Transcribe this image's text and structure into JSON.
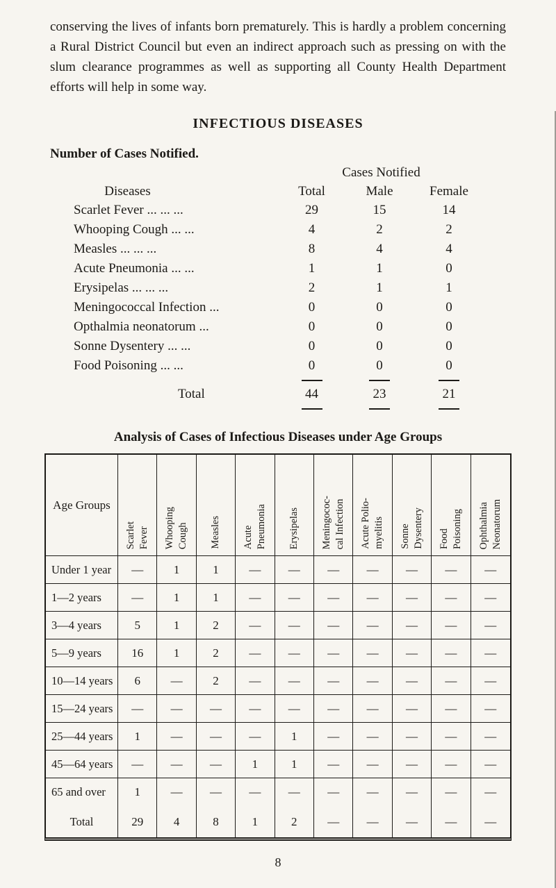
{
  "intro_paragraph": "conserving the lives of infants born prematurely. This is hardly a problem concerning a Rural District Council but even an indirect approach such as pressing on with the slum clearance programmes as well as supporting all County Health Department efforts will help in some way.",
  "section_heading": "INFECTIOUS DISEASES",
  "cases_notified": {
    "title": "Number of Cases Notified.",
    "group_header": "Cases Notified",
    "columns": {
      "diseases": "Diseases",
      "total": "Total",
      "male": "Male",
      "female": "Female"
    },
    "rows": [
      {
        "disease": "Scarlet Fever ...  ...  ...",
        "total": "29",
        "male": "15",
        "female": "14"
      },
      {
        "disease": "Whooping Cough  ...  ...",
        "total": "4",
        "male": "2",
        "female": "2"
      },
      {
        "disease": "Measles  ...  ...  ...",
        "total": "8",
        "male": "4",
        "female": "4"
      },
      {
        "disease": "Acute Pneumonia  ...  ...",
        "total": "1",
        "male": "1",
        "female": "0"
      },
      {
        "disease": "Erysipelas  ...  ...  ...",
        "total": "2",
        "male": "1",
        "female": "1"
      },
      {
        "disease": "Meningococcal Infection  ...",
        "total": "0",
        "male": "0",
        "female": "0"
      },
      {
        "disease": "Opthalmia neonatorum  ...",
        "total": "0",
        "male": "0",
        "female": "0"
      },
      {
        "disease": "Sonne Dysentery  ...  ...",
        "total": "0",
        "male": "0",
        "female": "0"
      },
      {
        "disease": "Food Poisoning  ...  ...",
        "total": "0",
        "male": "0",
        "female": "0"
      }
    ],
    "total_row": {
      "label": "Total",
      "total": "44",
      "male": "23",
      "female": "21"
    }
  },
  "age_analysis": {
    "title": "Analysis of Cases of Infectious Diseases under Age Groups",
    "age_column_header": "Age Groups",
    "disease_columns": [
      [
        "Scarlet",
        "Fever"
      ],
      [
        "Whooping",
        "Cough"
      ],
      [
        "Measles"
      ],
      [
        "Acute",
        "Pneumonia"
      ],
      [
        "Erysipelas"
      ],
      [
        "Meningococ-",
        "cal Infection"
      ],
      [
        "Acute Polio-",
        "myelitis"
      ],
      [
        "Sonne",
        "Dysentery"
      ],
      [
        "Food",
        "Poisoning"
      ],
      [
        "Ophthalmia",
        "Neonatorum"
      ]
    ],
    "rows": [
      {
        "age": "Under 1 year",
        "values": [
          "—",
          "1",
          "1",
          "—",
          "—",
          "—",
          "—",
          "—",
          "—",
          "—"
        ]
      },
      {
        "age": "1—2 years",
        "values": [
          "—",
          "1",
          "1",
          "—",
          "—",
          "—",
          "—",
          "—",
          "—",
          "—"
        ]
      },
      {
        "age": "3—4 years",
        "values": [
          "5",
          "1",
          "2",
          "—",
          "—",
          "—",
          "—",
          "—",
          "—",
          "—"
        ]
      },
      {
        "age": "5—9 years",
        "values": [
          "16",
          "1",
          "2",
          "—",
          "—",
          "—",
          "—",
          "—",
          "—",
          "—"
        ]
      },
      {
        "age": "10—14 years",
        "values": [
          "6",
          "—",
          "2",
          "—",
          "—",
          "—",
          "—",
          "—",
          "—",
          "—"
        ]
      },
      {
        "age": "15—24 years",
        "values": [
          "—",
          "—",
          "—",
          "—",
          "—",
          "—",
          "—",
          "—",
          "—",
          "—"
        ]
      },
      {
        "age": "25—44 years",
        "values": [
          "1",
          "—",
          "—",
          "—",
          "1",
          "—",
          "—",
          "—",
          "—",
          "—"
        ]
      },
      {
        "age": "45—64 years",
        "values": [
          "—",
          "—",
          "—",
          "1",
          "1",
          "—",
          "—",
          "—",
          "—",
          "—"
        ]
      },
      {
        "age": "65 and over",
        "values": [
          "1",
          "—",
          "—",
          "—",
          "—",
          "—",
          "—",
          "—",
          "—",
          "—"
        ]
      }
    ],
    "total_row": {
      "label": "Total",
      "values": [
        "29",
        "4",
        "8",
        "1",
        "2",
        "—",
        "—",
        "—",
        "—",
        "—"
      ]
    }
  },
  "page_number": "8"
}
